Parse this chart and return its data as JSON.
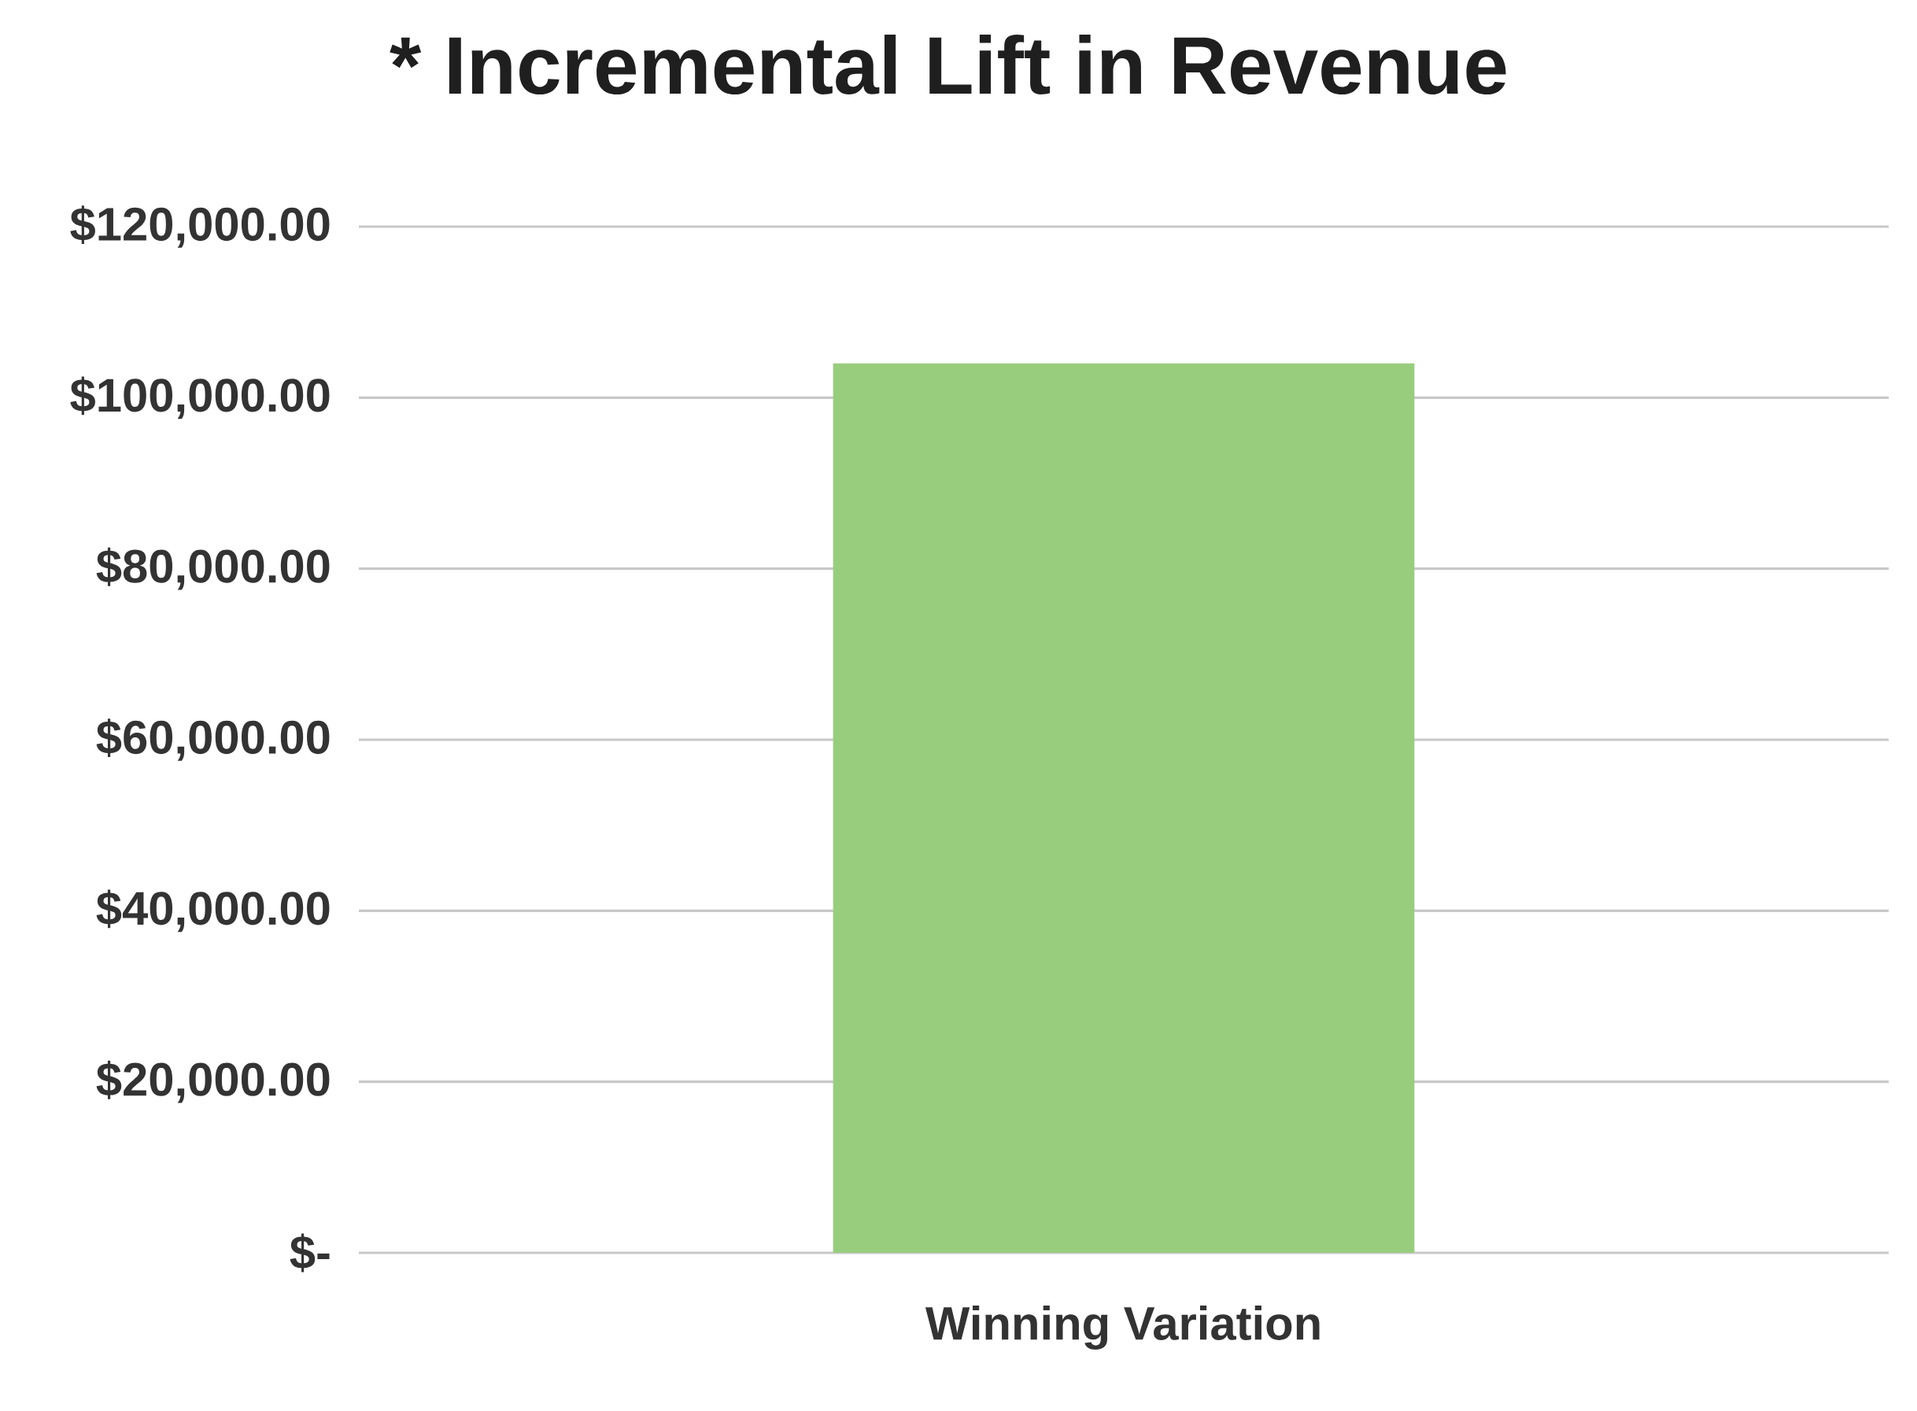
{
  "chart_data": {
    "type": "bar",
    "title": "* Incremental Lift in Revenue",
    "categories": [
      "Winning Variation"
    ],
    "values": [
      104000
    ],
    "color": "#98cd7e",
    "ylim": [
      0,
      120000
    ],
    "yticks": [
      {
        "value": 0,
        "label": "$-"
      },
      {
        "value": 20000,
        "label": "$20,000.00"
      },
      {
        "value": 40000,
        "label": "$40,000.00"
      },
      {
        "value": 60000,
        "label": "$60,000.00"
      },
      {
        "value": 80000,
        "label": "$80,000.00"
      },
      {
        "value": 100000,
        "label": "$100,000.00"
      },
      {
        "value": 120000,
        "label": "$120,000.00"
      }
    ],
    "grid": "y"
  }
}
